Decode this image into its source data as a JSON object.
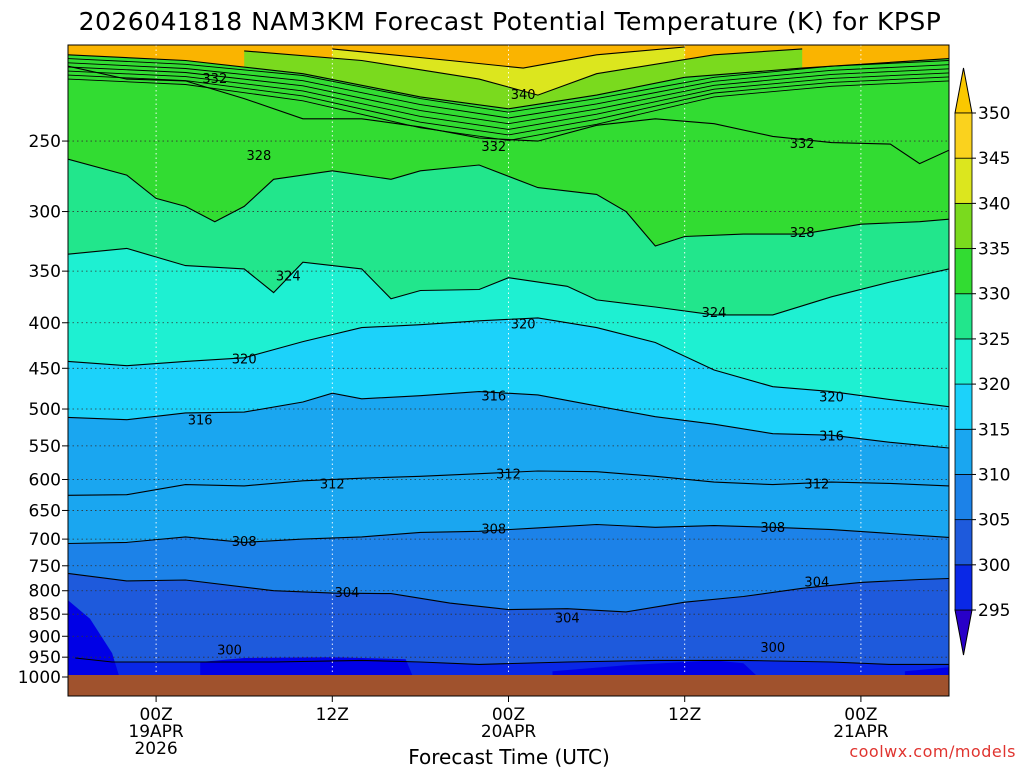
{
  "chart_data": {
    "type": "heatmap",
    "title": "2026041818 NAM3KM Forecast Potential Temperature (K) for KPSP",
    "xlabel": "Forecast Time (UTC)",
    "ylabel": "",
    "x_range_hours": [
      0,
      60
    ],
    "y_range_hpa": [
      1000,
      195
    ],
    "y_ticks": [
      {
        "value": 250,
        "label": "250"
      },
      {
        "value": 300,
        "label": "300"
      },
      {
        "value": 350,
        "label": "350"
      },
      {
        "value": 400,
        "label": "400"
      },
      {
        "value": 450,
        "label": "450"
      },
      {
        "value": 500,
        "label": "500"
      },
      {
        "value": 550,
        "label": "550"
      },
      {
        "value": 600,
        "label": "600"
      },
      {
        "value": 650,
        "label": "650"
      },
      {
        "value": 700,
        "label": "700"
      },
      {
        "value": 750,
        "label": "750"
      },
      {
        "value": 800,
        "label": "800"
      },
      {
        "value": 850,
        "label": "850"
      },
      {
        "value": 900,
        "label": "900"
      },
      {
        "value": 950,
        "label": "950"
      },
      {
        "value": 1000,
        "label": "1000"
      }
    ],
    "x_ticks": [
      {
        "hour": 6,
        "lines": [
          "00Z",
          "19APR",
          "2026"
        ]
      },
      {
        "hour": 18,
        "lines": [
          "12Z"
        ]
      },
      {
        "hour": 30,
        "lines": [
          "00Z",
          "20APR"
        ]
      },
      {
        "hour": 42,
        "lines": [
          "12Z"
        ]
      },
      {
        "hour": 54,
        "lines": [
          "00Z",
          "21APR"
        ]
      }
    ],
    "grid": true,
    "colorbar": {
      "levels": [
        295,
        300,
        305,
        310,
        315,
        320,
        325,
        330,
        335,
        340,
        345,
        350
      ],
      "labels": [
        "295",
        "300",
        "305",
        "310",
        "315",
        "320",
        "325",
        "330",
        "335",
        "340",
        "345",
        "350"
      ],
      "colors": [
        "#0000f0",
        "#0a28e6",
        "#1e5adc",
        "#1c82e8",
        "#1aa6f0",
        "#1cd2fa",
        "#1ef0d2",
        "#22e68c",
        "#32dc32",
        "#7ada1e",
        "#dce61e",
        "#fad21e",
        "#fab400"
      ],
      "under_color": "#0000dc",
      "over_color": "#fac800"
    },
    "isentropes": [
      {
        "theta": 300,
        "points": [
          [
            0.5,
            952
          ],
          [
            3,
            962
          ],
          [
            8,
            962
          ],
          [
            14,
            962
          ],
          [
            20,
            958
          ],
          [
            24,
            962
          ],
          [
            28,
            968
          ],
          [
            34,
            962
          ],
          [
            40,
            958
          ],
          [
            46,
            958
          ],
          [
            52,
            962
          ],
          [
            56,
            968
          ],
          [
            60,
            968
          ]
        ]
      },
      {
        "theta": 304,
        "points": [
          [
            0,
            765
          ],
          [
            4,
            780
          ],
          [
            8,
            778
          ],
          [
            14,
            800
          ],
          [
            18,
            805
          ],
          [
            22,
            806
          ],
          [
            26,
            826
          ],
          [
            30,
            840
          ],
          [
            34,
            838
          ],
          [
            38,
            845
          ],
          [
            42,
            824
          ],
          [
            46,
            812
          ],
          [
            50,
            795
          ],
          [
            54,
            783
          ],
          [
            58,
            777
          ],
          [
            60,
            775
          ]
        ]
      },
      {
        "theta": 308,
        "points": [
          [
            0,
            708
          ],
          [
            4,
            706
          ],
          [
            8,
            696
          ],
          [
            12,
            706
          ],
          [
            16,
            700
          ],
          [
            20,
            696
          ],
          [
            24,
            688
          ],
          [
            28,
            686
          ],
          [
            32,
            680
          ],
          [
            36,
            674
          ],
          [
            40,
            679
          ],
          [
            44,
            676
          ],
          [
            48,
            679
          ],
          [
            52,
            683
          ],
          [
            56,
            690
          ],
          [
            60,
            697
          ]
        ]
      },
      {
        "theta": 312,
        "points": [
          [
            0,
            625
          ],
          [
            4,
            624
          ],
          [
            8,
            608
          ],
          [
            12,
            610
          ],
          [
            16,
            602
          ],
          [
            20,
            598
          ],
          [
            24,
            595
          ],
          [
            28,
            591
          ],
          [
            32,
            587
          ],
          [
            36,
            588
          ],
          [
            40,
            595
          ],
          [
            44,
            604
          ],
          [
            48,
            608
          ],
          [
            52,
            604
          ],
          [
            56,
            606
          ],
          [
            60,
            610
          ]
        ]
      },
      {
        "theta": 316,
        "points": [
          [
            0,
            511
          ],
          [
            4,
            514
          ],
          [
            8,
            505
          ],
          [
            12,
            504
          ],
          [
            16,
            491
          ],
          [
            18,
            480
          ],
          [
            20,
            487
          ],
          [
            24,
            483
          ],
          [
            28,
            478
          ],
          [
            32,
            482
          ],
          [
            36,
            496
          ],
          [
            40,
            510
          ],
          [
            44,
            520
          ],
          [
            48,
            533
          ],
          [
            52,
            535
          ],
          [
            56,
            545
          ],
          [
            60,
            553
          ]
        ]
      },
      {
        "theta": 320,
        "points": [
          [
            0,
            442
          ],
          [
            4,
            447
          ],
          [
            8,
            442
          ],
          [
            12,
            438
          ],
          [
            16,
            420
          ],
          [
            20,
            405
          ],
          [
            24,
            402
          ],
          [
            28,
            398
          ],
          [
            32,
            395
          ],
          [
            36,
            405
          ],
          [
            40,
            421
          ],
          [
            44,
            452
          ],
          [
            48,
            472
          ],
          [
            52,
            478
          ],
          [
            56,
            488
          ],
          [
            60,
            497
          ]
        ]
      },
      {
        "theta": 324,
        "points": [
          [
            0,
            335
          ],
          [
            4,
            330
          ],
          [
            8,
            345
          ],
          [
            12,
            348
          ],
          [
            14,
            370
          ],
          [
            16,
            342
          ],
          [
            20,
            348
          ],
          [
            22,
            376
          ],
          [
            24,
            368
          ],
          [
            28,
            367
          ],
          [
            30,
            356
          ],
          [
            34,
            364
          ],
          [
            36,
            377
          ],
          [
            40,
            384
          ],
          [
            44,
            392
          ],
          [
            48,
            392
          ],
          [
            52,
            374
          ],
          [
            56,
            360
          ],
          [
            60,
            348
          ]
        ]
      },
      {
        "theta": 328,
        "points": [
          [
            0,
            262
          ],
          [
            4,
            273
          ],
          [
            6,
            290
          ],
          [
            8,
            296
          ],
          [
            10,
            308
          ],
          [
            12,
            296
          ],
          [
            14,
            276
          ],
          [
            18,
            270
          ],
          [
            22,
            276
          ],
          [
            24,
            270
          ],
          [
            28,
            266
          ],
          [
            32,
            282
          ],
          [
            36,
            287
          ],
          [
            38,
            300
          ],
          [
            40,
            328
          ],
          [
            42,
            320
          ],
          [
            46,
            318
          ],
          [
            50,
            318
          ],
          [
            54,
            310
          ],
          [
            58,
            308
          ],
          [
            60,
            306
          ]
        ]
      },
      {
        "theta": 332,
        "points": [
          [
            0,
            206
          ],
          [
            4,
            213
          ],
          [
            8,
            214
          ],
          [
            12,
            224
          ],
          [
            16,
            236
          ],
          [
            20,
            236
          ],
          [
            24,
            241
          ],
          [
            28,
            248
          ],
          [
            32,
            250
          ],
          [
            36,
            240
          ],
          [
            40,
            236
          ],
          [
            44,
            239
          ],
          [
            48,
            247
          ],
          [
            52,
            251
          ],
          [
            56,
            252
          ],
          [
            58,
            265
          ],
          [
            60,
            256
          ]
        ]
      },
      {
        "theta": 336,
        "points": [
          [
            0,
            200
          ],
          [
            8,
            203
          ],
          [
            16,
            210
          ],
          [
            24,
            223
          ],
          [
            30,
            230
          ],
          [
            36,
            222
          ],
          [
            42,
            212
          ],
          [
            50,
            207
          ],
          [
            60,
            202
          ]
        ]
      },
      {
        "theta": 340,
        "points": [
          [
            12,
            198
          ],
          [
            20,
            203
          ],
          [
            28,
            213
          ],
          [
            32,
            222
          ],
          [
            36,
            210
          ],
          [
            44,
            200
          ],
          [
            50,
            197
          ]
        ]
      },
      {
        "theta": 344,
        "points": [
          [
            18,
            197
          ],
          [
            26,
            203
          ],
          [
            31,
            207
          ],
          [
            36,
            200
          ],
          [
            42,
            196
          ]
        ]
      }
    ],
    "contour_labels": [
      {
        "text": "332",
        "hour": 10,
        "p": 213
      },
      {
        "text": "340",
        "hour": 31,
        "p": 222
      },
      {
        "text": "332",
        "hour": 29,
        "p": 254
      },
      {
        "text": "332",
        "hour": 50,
        "p": 252
      },
      {
        "text": "328",
        "hour": 13,
        "p": 260
      },
      {
        "text": "328",
        "hour": 50,
        "p": 317
      },
      {
        "text": "324",
        "hour": 15,
        "p": 355
      },
      {
        "text": "324",
        "hour": 44,
        "p": 390
      },
      {
        "text": "320",
        "hour": 31,
        "p": 402
      },
      {
        "text": "320",
        "hour": 12,
        "p": 440
      },
      {
        "text": "320",
        "hour": 52,
        "p": 485
      },
      {
        "text": "316",
        "hour": 29,
        "p": 484
      },
      {
        "text": "316",
        "hour": 9,
        "p": 515
      },
      {
        "text": "316",
        "hour": 52,
        "p": 537
      },
      {
        "text": "312",
        "hour": 30,
        "p": 592
      },
      {
        "text": "312",
        "hour": 18,
        "p": 608
      },
      {
        "text": "312",
        "hour": 51,
        "p": 608
      },
      {
        "text": "308",
        "hour": 29,
        "p": 683
      },
      {
        "text": "308",
        "hour": 48,
        "p": 680
      },
      {
        "text": "308",
        "hour": 12,
        "p": 705
      },
      {
        "text": "304",
        "hour": 51,
        "p": 783
      },
      {
        "text": "304",
        "hour": 19,
        "p": 805
      },
      {
        "text": "304",
        "hour": 34,
        "p": 860
      },
      {
        "text": "300",
        "hour": 11,
        "p": 934
      },
      {
        "text": "300",
        "hour": 48,
        "p": 928
      }
    ]
  },
  "credit": "coolwx.com/models"
}
